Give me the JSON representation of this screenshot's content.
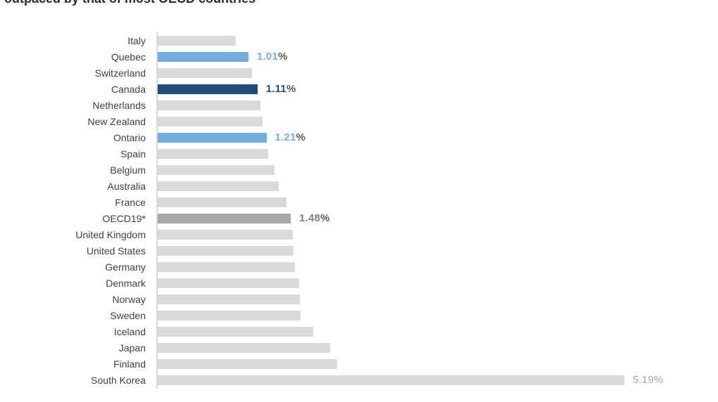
{
  "title": {
    "text": "outpaced by that of most OECD countries"
  },
  "colors": {
    "bar_default": "#d9d9d9",
    "bar_highlight_blue": "#74aede",
    "bar_highlight_navy": "#1f4e79",
    "bar_highlight_gray": "#a8a8a8",
    "axis_line": "#d9d9d9",
    "category_label_text": "#404040",
    "value_percent_sign": "#595959",
    "value_muted_text": "#a6a6a6",
    "title_text": "#2b2b2b"
  },
  "chart_data": {
    "type": "bar",
    "orientation": "horizontal",
    "title": "outpaced by that of most OECD countries",
    "xlabel": "",
    "ylabel": "",
    "xlim": [
      0,
      5.5
    ],
    "grid": false,
    "legend": false,
    "unit": "%",
    "categories": [
      "Italy",
      "Quebec",
      "Switzerland",
      "Canada",
      "Netherlands",
      "New Zealand",
      "Ontario",
      "Spain",
      "Belgium",
      "Australia",
      "France",
      "OECD19*",
      "United Kingdom",
      "United States",
      "Germany",
      "Denmark",
      "Norway",
      "Sweden",
      "Iceland",
      "Japan",
      "Finland",
      "South Korea"
    ],
    "values": [
      0.87,
      1.01,
      1.05,
      1.11,
      1.14,
      1.17,
      1.21,
      1.23,
      1.3,
      1.35,
      1.43,
      1.48,
      1.5,
      1.51,
      1.53,
      1.57,
      1.58,
      1.59,
      1.73,
      1.92,
      2.0,
      5.19
    ],
    "data_labels": [
      "",
      "1.01%",
      "",
      "1.11%",
      "",
      "",
      "1.21%",
      "",
      "",
      "",
      "",
      "1.48%",
      "",
      "",
      "",
      "",
      "",
      "",
      "",
      "",
      "",
      "5.19%"
    ],
    "bar_styles": [
      "default",
      "blue",
      "default",
      "navy",
      "default",
      "default",
      "blue",
      "default",
      "default",
      "default",
      "default",
      "gray",
      "default",
      "default",
      "default",
      "default",
      "default",
      "default",
      "default",
      "default",
      "default",
      "default"
    ],
    "label_styles": [
      "none",
      "blue-bold",
      "none",
      "navy-bold",
      "none",
      "none",
      "blue-bold",
      "none",
      "none",
      "none",
      "none",
      "gray-bold",
      "none",
      "none",
      "none",
      "none",
      "none",
      "none",
      "none",
      "none",
      "none",
      "muted-regular"
    ]
  }
}
